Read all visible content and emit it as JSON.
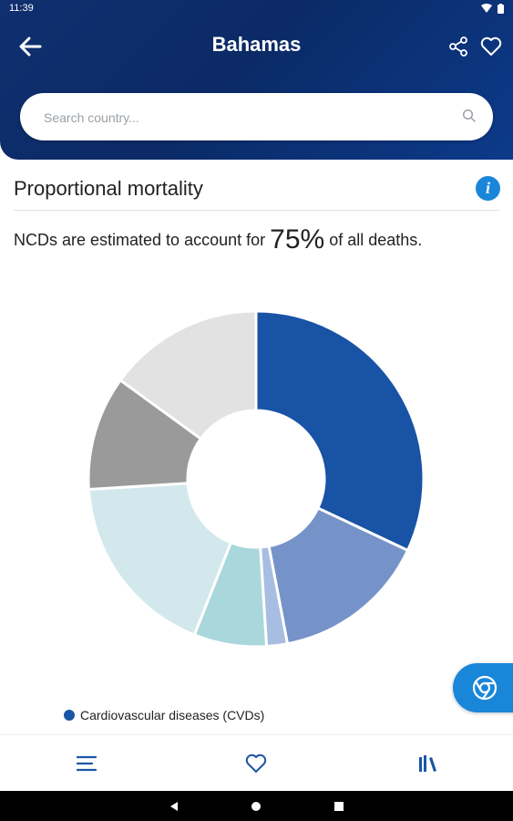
{
  "status_bar": {
    "time": "11:39"
  },
  "header": {
    "title": "Bahamas"
  },
  "search": {
    "placeholder": "Search country..."
  },
  "section": {
    "title": "Proportional mortality",
    "ncd_prefix": "NCDs are estimated to account for",
    "ncd_value": "75%",
    "ncd_suffix": "of all deaths."
  },
  "colors": {
    "header": "#0b2a66",
    "accent": "#1a86d9"
  },
  "chart_data": {
    "type": "pie",
    "categories": [
      "Cardiovascular diseases (CVDs)",
      "",
      "",
      "",
      "",
      "",
      ""
    ],
    "values": [
      32,
      15,
      2,
      7,
      18,
      11,
      15
    ],
    "colors": [
      "#1853a5",
      "#7593c9",
      "#a7bde2",
      "#a9d7db",
      "#d3e8ec",
      "#9a9a9a",
      "#e2e2e2"
    ],
    "legend_visible": [
      "Cardiovascular diseases (CVDs)"
    ]
  },
  "nav": {
    "items": [
      {
        "name": "menu-icon"
      },
      {
        "name": "heart-icon"
      },
      {
        "name": "library-icon"
      }
    ]
  }
}
